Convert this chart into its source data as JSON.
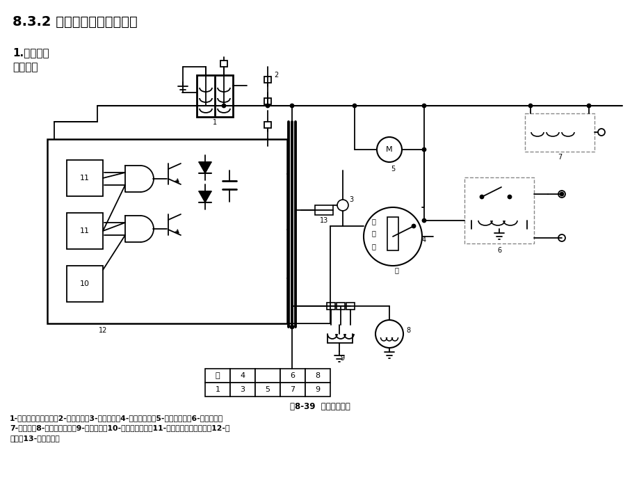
{
  "title1": "8.3.2 一般汽车空调控制电路",
  "title2": "1.冷风系统\n控制电路",
  "fig_caption": "图8-39  轿车空调电路",
  "legend_text": "1-压缩机电磁离合器；2-点火线圈；3-压力开关；4-鼓风机开关；5-鼓风电动机；6-点火开关；\n7-熔断器；8-温度调节旋钮；9-热敏电阻；10-温度检测电路；11-发动机转速检测电路；12-放\n大器；13-真空转换阀",
  "bg_color": "#ffffff",
  "line_color": "#000000",
  "text_color": "#000000"
}
